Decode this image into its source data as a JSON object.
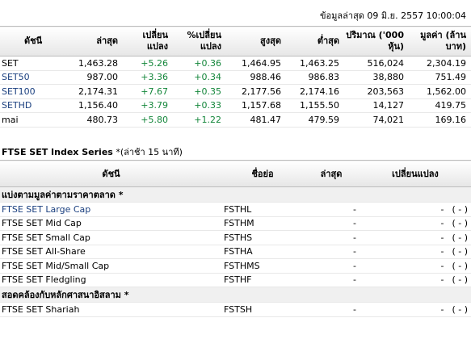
{
  "timestamp": "ข้อมูลล่าสุด 09 มิ.ย. 2557 10:00:04",
  "main_table": {
    "headers": [
      "ดัชนี",
      "ล่าสุด",
      "เปลี่ยน แปลง",
      "%เปลี่ยน แปลง",
      "สูงสุด",
      "ต่ำสุด",
      "ปริมาณ ('000 หุ้น)",
      "มูลค่า (ล้านบาท)"
    ],
    "rows": [
      {
        "name": "SET",
        "last": "1,463.28",
        "change": "+5.26",
        "pct": "+0.36",
        "high": "1,464.95",
        "low": "1,463.25",
        "volume": "516,024",
        "value": "2,304.19"
      },
      {
        "name": "SET50",
        "last": "987.00",
        "change": "+3.36",
        "pct": "+0.34",
        "high": "988.46",
        "low": "986.83",
        "volume": "38,880",
        "value": "751.49"
      },
      {
        "name": "SET100",
        "last": "2,174.31",
        "change": "+7.67",
        "pct": "+0.35",
        "high": "2,177.56",
        "low": "2,174.16",
        "volume": "203,563",
        "value": "1,562.00"
      },
      {
        "name": "SETHD",
        "last": "1,156.40",
        "change": "+3.79",
        "pct": "+0.33",
        "high": "1,157.68",
        "low": "1,155.50",
        "volume": "14,127",
        "value": "419.75"
      },
      {
        "name": "mai",
        "last": "480.73",
        "change": "+5.80",
        "pct": "+1.22",
        "high": "481.47",
        "low": "479.59",
        "volume": "74,021",
        "value": "169.16"
      }
    ]
  },
  "ftse": {
    "title": "FTSE SET Index Series",
    "note": "*(ล่าช้า 15 นาที)",
    "headers": [
      "ดัชนี",
      "ชื่อย่อ",
      "ล่าสุด",
      "เปลี่ยนแปลง"
    ],
    "groups": [
      {
        "label": "แบ่งตามมูลค่าตามราคาตลาด *",
        "rows": [
          {
            "name": "FTSE SET Large Cap",
            "code": "FSTHL",
            "last": "-",
            "change": "-",
            "pct": "( - )"
          },
          {
            "name": "FTSE SET Mid Cap",
            "code": "FSTHM",
            "last": "-",
            "change": "-",
            "pct": "( - )"
          },
          {
            "name": "FTSE SET Small Cap",
            "code": "FSTHS",
            "last": "-",
            "change": "-",
            "pct": "( - )"
          },
          {
            "name": "FTSE SET All-Share",
            "code": "FSTHA",
            "last": "-",
            "change": "-",
            "pct": "( - )"
          },
          {
            "name": "FTSE SET Mid/Small Cap",
            "code": "FSTHMS",
            "last": "-",
            "change": "-",
            "pct": "( - )"
          },
          {
            "name": "FTSE SET Fledgling",
            "code": "FSTHF",
            "last": "-",
            "change": "-",
            "pct": "( - )"
          }
        ]
      },
      {
        "label": "สอดคล้องกับหลักศาสนาอิสลาม *",
        "rows": [
          {
            "name": "FTSE SET Shariah",
            "code": "FSTSH",
            "last": "-",
            "change": "-",
            "pct": "( - )"
          }
        ]
      }
    ]
  },
  "colors": {
    "link": "#1a3f7f",
    "positive": "#13863a"
  }
}
